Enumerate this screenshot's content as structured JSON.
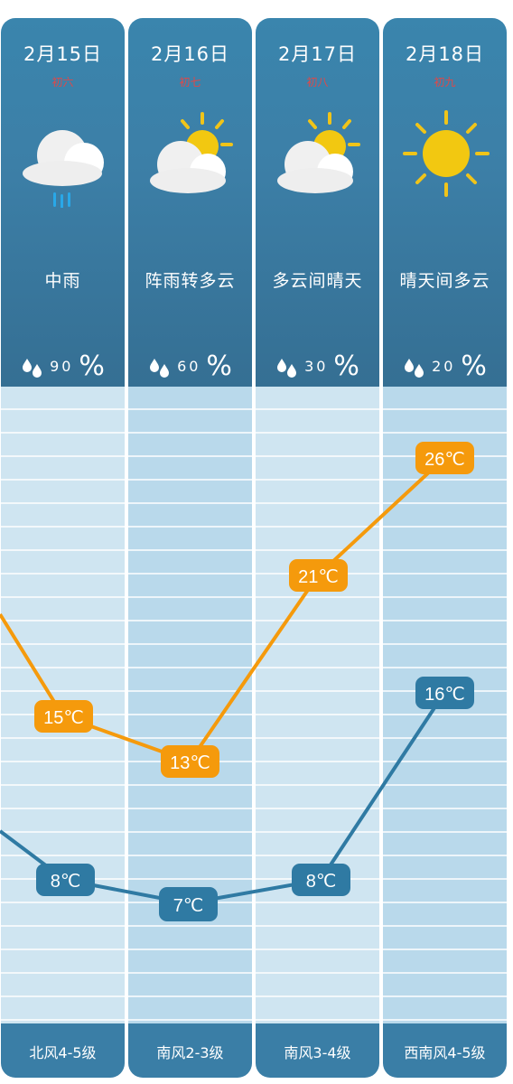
{
  "days": [
    {
      "date": "2月15日",
      "lunar": "初六",
      "icon": "cloud-rain-icon",
      "condition": "中雨",
      "rain_percent": "90",
      "wind": "北风4-5级",
      "high": "15℃",
      "low": "8℃"
    },
    {
      "date": "2月16日",
      "lunar": "初七",
      "icon": "partly-cloudy-icon",
      "condition": "阵雨转多云",
      "rain_percent": "60",
      "wind": "南风2-3级",
      "high": "13℃",
      "low": "7℃"
    },
    {
      "date": "2月17日",
      "lunar": "初八",
      "icon": "partly-cloudy-icon",
      "condition": "多云间晴天",
      "rain_percent": "30",
      "wind": "南风3-4级",
      "high": "21℃",
      "low": "8℃"
    },
    {
      "date": "2月18日",
      "lunar": "初九",
      "icon": "sun-icon",
      "condition": "晴天间多云",
      "rain_percent": "20",
      "wind": "西南风4-5级",
      "high": "26℃",
      "low": "16℃"
    }
  ],
  "percent_symbol": "%",
  "colors": {
    "high_line": "#f59a0c",
    "low_line": "#2f7aa3",
    "header": "#3a82aa"
  }
}
